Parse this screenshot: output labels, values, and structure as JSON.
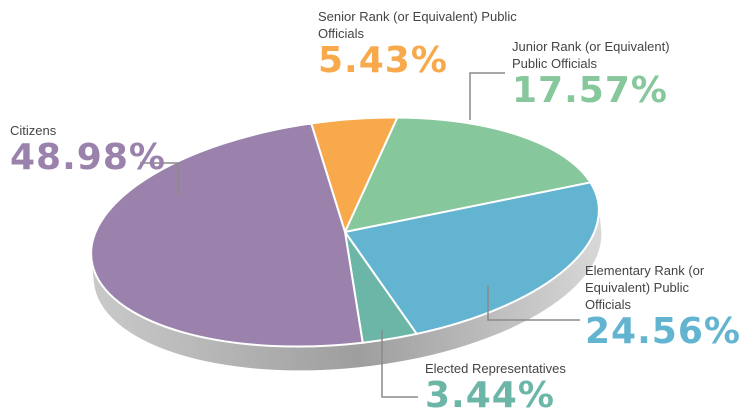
{
  "chart_data": {
    "type": "pie",
    "categories": [
      "Senior Rank (or Equivalent) Public Officials",
      "Junior Rank (or Equivalent) Public Officials",
      "Elementary Rank (or Equivalent) Public Officials",
      "Elected Representatives",
      "Citizens"
    ],
    "values": [
      5.43,
      17.57,
      24.56,
      3.44,
      48.98
    ],
    "value_labels": [
      "5.43%",
      "17.57%",
      "24.56%",
      "3.44%",
      "48.98%"
    ],
    "colors": [
      "#f7a94b",
      "#86c79c",
      "#63b4d0",
      "#6cb6a8",
      "#9a82ad"
    ]
  }
}
